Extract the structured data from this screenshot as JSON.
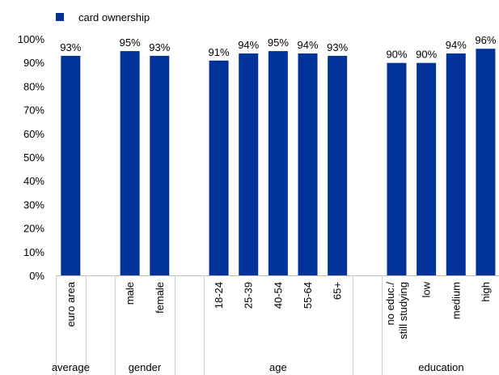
{
  "chart_data": {
    "type": "bar",
    "legend": {
      "label": "card ownership",
      "color": "#003299",
      "placement": "top-left"
    },
    "series": [
      {
        "name": "card ownership",
        "color": "#003299",
        "values": [
          93,
          95,
          93,
          91,
          94,
          95,
          94,
          93,
          90,
          90,
          94,
          96
        ],
        "labels": [
          "93%",
          "95%",
          "93%",
          "91%",
          "94%",
          "95%",
          "94%",
          "93%",
          "90%",
          "90%",
          "94%",
          "96%"
        ]
      }
    ],
    "categories": [
      {
        "label": "euro area",
        "group": 0
      },
      {
        "label": "male",
        "group": 1
      },
      {
        "label": "female",
        "group": 1
      },
      {
        "label": "18-24",
        "group": 2
      },
      {
        "label": "25-39",
        "group": 2
      },
      {
        "label": "40-54",
        "group": 2
      },
      {
        "label": "55-64",
        "group": 2
      },
      {
        "label": "65+",
        "group": 2
      },
      {
        "label": "no educ./\nstill studying",
        "group": 3
      },
      {
        "label": "low",
        "group": 3
      },
      {
        "label": "medium",
        "group": 3
      },
      {
        "label": "high",
        "group": 3
      }
    ],
    "groups": [
      "average",
      "gender",
      "age",
      "education"
    ],
    "yticks": [
      "0%",
      "10%",
      "20%",
      "30%",
      "40%",
      "50%",
      "60%",
      "70%",
      "80%",
      "90%",
      "100%"
    ],
    "ylim": [
      0,
      100
    ],
    "grid": false
  }
}
